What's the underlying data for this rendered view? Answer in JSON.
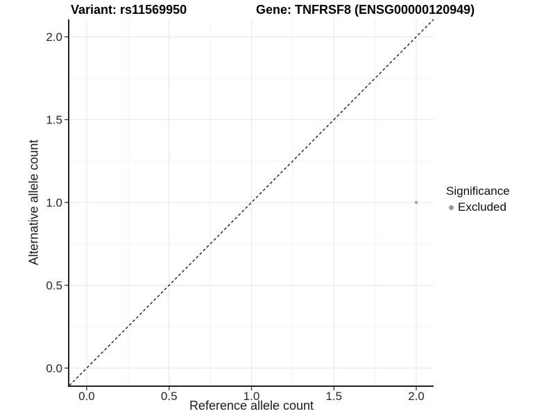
{
  "plot": {
    "title_left": "Variant: rs11569950",
    "title_right": "Gene: TNFRSF8 (ENSG00000120949)"
  },
  "chart_data": {
    "type": "scatter",
    "title": "Variant: rs11569950 / Gene: TNFRSF8 (ENSG00000120949)",
    "xlabel": "Reference allele count",
    "ylabel": "Alternative allele count",
    "xlim": [
      -0.105,
      2.105
    ],
    "ylim": [
      -0.105,
      2.105
    ],
    "x_ticks": [
      0.0,
      0.5,
      1.0,
      1.5,
      2.0
    ],
    "x_tick_labels": [
      "0.0",
      "0.5",
      "1.0",
      "1.5",
      "2.0"
    ],
    "y_ticks": [
      0.0,
      0.5,
      1.0,
      1.5,
      2.0
    ],
    "y_tick_labels": [
      "0.0",
      "0.5",
      "1.0",
      "1.5",
      "2.0"
    ],
    "minor_ticks": [
      0.25,
      0.75,
      1.25,
      1.75
    ],
    "grid": "major+minor",
    "legend_position": "right",
    "series": [
      {
        "name": "Excluded",
        "color": "#a8a8a8",
        "point_radius": 2.3,
        "points": [
          {
            "x": 2.0,
            "y": 1.0
          }
        ]
      }
    ],
    "reference_line": {
      "type": "identity y=x",
      "style": "dashed",
      "color": "#1a1a1a"
    }
  },
  "legend": {
    "title": "Significance",
    "items": [
      {
        "label": "Excluded",
        "swatch_color": "#999999"
      }
    ]
  },
  "colors": {
    "background": "#ffffff",
    "grid_major": "#e7e7e7",
    "grid_minor": "#f2f2f2",
    "axis_line": "#222222",
    "tick_mark": "#333333",
    "tick_text": "#262626",
    "point": "#a8a8a8",
    "dashed_line": "#1a1a1a"
  }
}
